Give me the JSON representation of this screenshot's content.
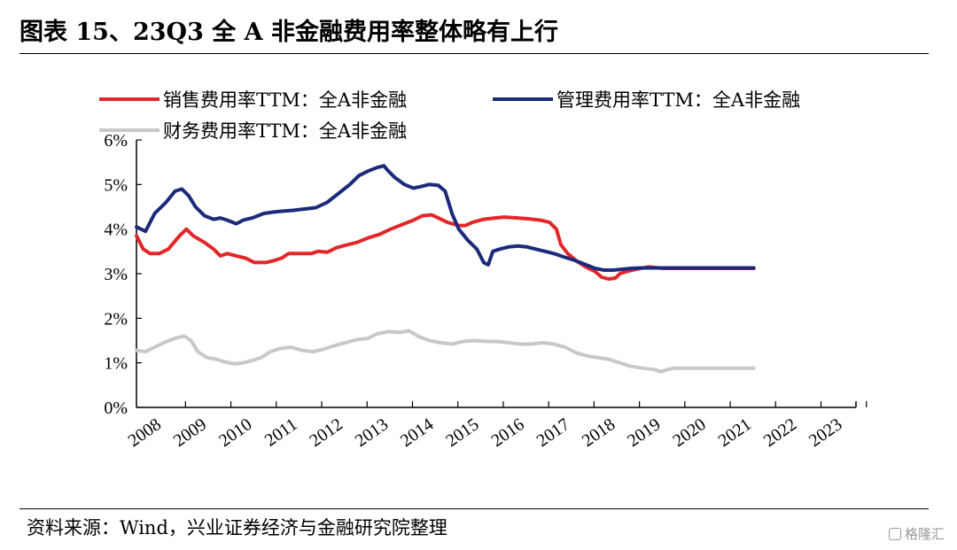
{
  "title": "图表 15、23Q3 全 A 非金融费用率整体略有上行",
  "source": "资料来源：Wind，兴业证券经济与金融研究院整理",
  "watermark": "格隆汇",
  "chart_data": {
    "type": "line",
    "x_range": [
      2007.9,
      2023.75
    ],
    "ylim": [
      0,
      6
    ],
    "y_ticks": [
      "0%",
      "1%",
      "2%",
      "3%",
      "4%",
      "5%",
      "6%"
    ],
    "x_ticks": [
      {
        "label": "2008",
        "x": 2008
      },
      {
        "label": "2009",
        "x": 2009
      },
      {
        "label": "2010",
        "x": 2010
      },
      {
        "label": "2011",
        "x": 2011
      },
      {
        "label": "2012",
        "x": 2012
      },
      {
        "label": "2013",
        "x": 2013
      },
      {
        "label": "2014",
        "x": 2014
      },
      {
        "label": "2015",
        "x": 2015
      },
      {
        "label": "2016",
        "x": 2016
      },
      {
        "label": "2017",
        "x": 2017
      },
      {
        "label": "2018",
        "x": 2018
      },
      {
        "label": "2019",
        "x": 2019
      },
      {
        "label": "2020",
        "x": 2020
      },
      {
        "label": "2021",
        "x": 2021
      },
      {
        "label": "2022",
        "x": 2022
      },
      {
        "label": "2023",
        "x": 2023
      }
    ],
    "grid": false,
    "legend_position": "top",
    "series": [
      {
        "name": "销售费用率TTM：全A非金融",
        "color": "#e3262a",
        "points": [
          [
            2007.9,
            3.85
          ],
          [
            2008.05,
            3.55
          ],
          [
            2008.2,
            3.45
          ],
          [
            2008.4,
            3.45
          ],
          [
            2008.6,
            3.55
          ],
          [
            2008.85,
            3.85
          ],
          [
            2009.0,
            4.0
          ],
          [
            2009.15,
            3.85
          ],
          [
            2009.4,
            3.7
          ],
          [
            2009.6,
            3.55
          ],
          [
            2009.75,
            3.4
          ],
          [
            2009.9,
            3.45
          ],
          [
            2010.1,
            3.4
          ],
          [
            2010.3,
            3.35
          ],
          [
            2010.5,
            3.25
          ],
          [
            2010.75,
            3.25
          ],
          [
            2010.95,
            3.3
          ],
          [
            2011.1,
            3.35
          ],
          [
            2011.25,
            3.45
          ],
          [
            2011.5,
            3.45
          ],
          [
            2011.75,
            3.45
          ],
          [
            2011.9,
            3.5
          ],
          [
            2012.1,
            3.48
          ],
          [
            2012.3,
            3.58
          ],
          [
            2012.55,
            3.65
          ],
          [
            2012.75,
            3.7
          ],
          [
            2013.0,
            3.8
          ],
          [
            2013.25,
            3.88
          ],
          [
            2013.5,
            4.0
          ],
          [
            2013.75,
            4.1
          ],
          [
            2014.0,
            4.2
          ],
          [
            2014.2,
            4.3
          ],
          [
            2014.4,
            4.32
          ],
          [
            2014.55,
            4.25
          ],
          [
            2014.75,
            4.15
          ],
          [
            2015.0,
            4.08
          ],
          [
            2015.15,
            4.08
          ],
          [
            2015.3,
            4.15
          ],
          [
            2015.55,
            4.22
          ],
          [
            2015.8,
            4.25
          ],
          [
            2016.0,
            4.27
          ],
          [
            2016.3,
            4.25
          ],
          [
            2016.55,
            4.23
          ],
          [
            2016.8,
            4.2
          ],
          [
            2017.0,
            4.15
          ],
          [
            2017.15,
            4.0
          ],
          [
            2017.25,
            3.65
          ],
          [
            2017.4,
            3.45
          ],
          [
            2017.6,
            3.28
          ],
          [
            2017.8,
            3.15
          ],
          [
            2018.0,
            3.05
          ],
          [
            2018.15,
            2.92
          ],
          [
            2018.3,
            2.88
          ],
          [
            2018.45,
            2.9
          ],
          [
            2018.55,
            3.0
          ],
          [
            2018.7,
            3.05
          ],
          [
            2018.9,
            3.1
          ],
          [
            2019.0,
            3.12
          ],
          [
            2019.2,
            3.15
          ],
          [
            2019.5,
            3.12
          ],
          [
            2019.7,
            3.12
          ],
          [
            2020.0,
            3.12
          ],
          [
            2020.5,
            3.12
          ],
          [
            2021.0,
            3.12
          ],
          [
            2021.5,
            3.12
          ]
        ]
      },
      {
        "name": "管理费用率TTM：全A非金融",
        "color": "#1b2a7a",
        "points": [
          [
            2007.9,
            4.05
          ],
          [
            2008.1,
            3.95
          ],
          [
            2008.3,
            4.35
          ],
          [
            2008.55,
            4.6
          ],
          [
            2008.75,
            4.85
          ],
          [
            2008.9,
            4.9
          ],
          [
            2009.05,
            4.75
          ],
          [
            2009.2,
            4.5
          ],
          [
            2009.4,
            4.3
          ],
          [
            2009.6,
            4.22
          ],
          [
            2009.75,
            4.25
          ],
          [
            2009.9,
            4.2
          ],
          [
            2010.1,
            4.12
          ],
          [
            2010.25,
            4.2
          ],
          [
            2010.45,
            4.25
          ],
          [
            2010.7,
            4.35
          ],
          [
            2010.9,
            4.38
          ],
          [
            2011.1,
            4.4
          ],
          [
            2011.35,
            4.42
          ],
          [
            2011.6,
            4.45
          ],
          [
            2011.85,
            4.48
          ],
          [
            2012.1,
            4.6
          ],
          [
            2012.35,
            4.8
          ],
          [
            2012.6,
            5.0
          ],
          [
            2012.8,
            5.2
          ],
          [
            2013.0,
            5.3
          ],
          [
            2013.2,
            5.38
          ],
          [
            2013.35,
            5.42
          ],
          [
            2013.45,
            5.3
          ],
          [
            2013.6,
            5.15
          ],
          [
            2013.8,
            5.0
          ],
          [
            2014.0,
            4.92
          ],
          [
            2014.15,
            4.95
          ],
          [
            2014.35,
            5.0
          ],
          [
            2014.55,
            4.98
          ],
          [
            2014.7,
            4.85
          ],
          [
            2014.85,
            4.35
          ],
          [
            2015.0,
            4.0
          ],
          [
            2015.2,
            3.75
          ],
          [
            2015.4,
            3.55
          ],
          [
            2015.55,
            3.25
          ],
          [
            2015.65,
            3.2
          ],
          [
            2015.75,
            3.5
          ],
          [
            2015.9,
            3.55
          ],
          [
            2016.1,
            3.6
          ],
          [
            2016.3,
            3.62
          ],
          [
            2016.5,
            3.6
          ],
          [
            2016.7,
            3.55
          ],
          [
            2016.9,
            3.5
          ],
          [
            2017.1,
            3.45
          ],
          [
            2017.3,
            3.38
          ],
          [
            2017.55,
            3.3
          ],
          [
            2017.8,
            3.2
          ],
          [
            2018.0,
            3.12
          ],
          [
            2018.2,
            3.08
          ],
          [
            2018.4,
            3.08
          ],
          [
            2018.6,
            3.1
          ],
          [
            2018.8,
            3.12
          ],
          [
            2019.0,
            3.13
          ],
          [
            2019.3,
            3.13
          ],
          [
            2019.5,
            3.13
          ],
          [
            2020.0,
            3.13
          ],
          [
            2021.0,
            3.13
          ],
          [
            2021.5,
            3.13
          ]
        ]
      },
      {
        "name": "财务费用率TTM：全A非金融",
        "color": "#c8c8c8",
        "points": [
          [
            2007.9,
            1.28
          ],
          [
            2008.1,
            1.25
          ],
          [
            2008.3,
            1.35
          ],
          [
            2008.5,
            1.45
          ],
          [
            2008.75,
            1.55
          ],
          [
            2008.95,
            1.6
          ],
          [
            2009.1,
            1.5
          ],
          [
            2009.25,
            1.25
          ],
          [
            2009.45,
            1.12
          ],
          [
            2009.65,
            1.08
          ],
          [
            2009.85,
            1.02
          ],
          [
            2010.05,
            0.98
          ],
          [
            2010.25,
            1.0
          ],
          [
            2010.45,
            1.05
          ],
          [
            2010.65,
            1.12
          ],
          [
            2010.85,
            1.25
          ],
          [
            2011.05,
            1.32
          ],
          [
            2011.3,
            1.35
          ],
          [
            2011.55,
            1.28
          ],
          [
            2011.8,
            1.25
          ],
          [
            2012.0,
            1.3
          ],
          [
            2012.25,
            1.38
          ],
          [
            2012.5,
            1.45
          ],
          [
            2012.75,
            1.52
          ],
          [
            2013.0,
            1.55
          ],
          [
            2013.2,
            1.65
          ],
          [
            2013.45,
            1.7
          ],
          [
            2013.7,
            1.68
          ],
          [
            2013.9,
            1.72
          ],
          [
            2014.1,
            1.6
          ],
          [
            2014.35,
            1.5
          ],
          [
            2014.6,
            1.45
          ],
          [
            2014.85,
            1.42
          ],
          [
            2015.1,
            1.48
          ],
          [
            2015.35,
            1.5
          ],
          [
            2015.6,
            1.48
          ],
          [
            2015.85,
            1.48
          ],
          [
            2016.1,
            1.45
          ],
          [
            2016.35,
            1.42
          ],
          [
            2016.6,
            1.42
          ],
          [
            2016.85,
            1.45
          ],
          [
            2017.1,
            1.42
          ],
          [
            2017.35,
            1.35
          ],
          [
            2017.6,
            1.22
          ],
          [
            2017.85,
            1.15
          ],
          [
            2018.05,
            1.12
          ],
          [
            2018.3,
            1.08
          ],
          [
            2018.55,
            1.0
          ],
          [
            2018.8,
            0.92
          ],
          [
            2019.05,
            0.88
          ],
          [
            2019.3,
            0.85
          ],
          [
            2019.45,
            0.8
          ],
          [
            2019.6,
            0.85
          ],
          [
            2019.75,
            0.88
          ],
          [
            2020.0,
            0.88
          ],
          [
            2021.0,
            0.88
          ],
          [
            2021.5,
            0.88
          ]
        ]
      }
    ]
  }
}
